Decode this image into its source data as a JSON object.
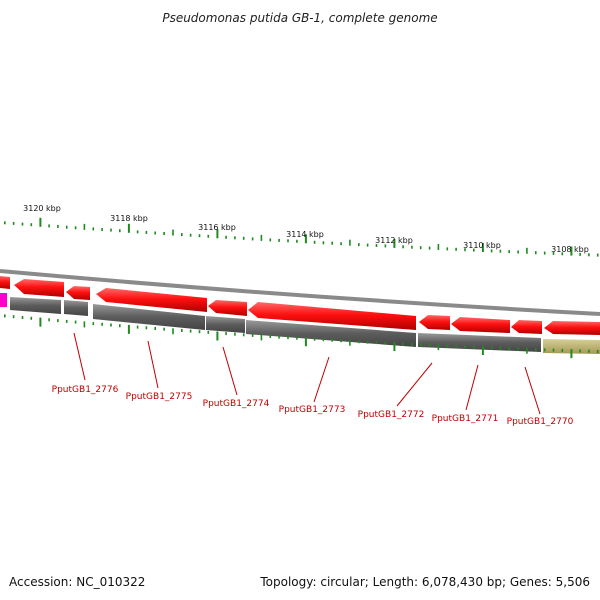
{
  "title": "Pseudomonas putida GB-1, complete genome",
  "footer": {
    "accession": "Accession: NC_010322",
    "summary": "Topology: circular; Length: 6,078,430 bp; Genes: 5,506"
  },
  "colors": {
    "gene_fill": "#ff1a1a",
    "gene_dark": "#b00000",
    "track_gray": "#666666",
    "other_feature": "#b8ae6a",
    "magenta_feature": "#ff00cc",
    "tick_green": "#1f8a1f",
    "label_red": "#c00000"
  },
  "chart_data": {
    "type": "genome_map",
    "strand": "reverse",
    "ruler_labels": [
      "3120 kbp",
      "3118 kbp",
      "3116 kbp",
      "3114 kbp",
      "3112 kbp",
      "3110 kbp",
      "3108 kbp"
    ],
    "genes": [
      {
        "label": "PputGB1_2776"
      },
      {
        "label": "PputGB1_2775"
      },
      {
        "label": "PputGB1_2774"
      },
      {
        "label": "PputGB1_2773"
      },
      {
        "label": "PputGB1_2772"
      },
      {
        "label": "PputGB1_2771"
      },
      {
        "label": "PputGB1_2770"
      }
    ]
  }
}
